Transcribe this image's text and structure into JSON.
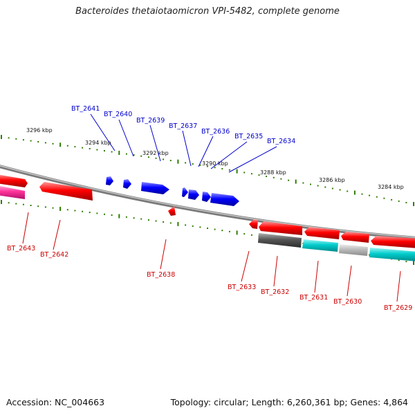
{
  "title": "Bacteroides thetaiotaomicron VPI-5482, complete genome",
  "footer": {
    "accession": "Accession: NC_004663",
    "summary": "Topology: circular; Length: 6,260,361 bp; Genes: 4,864"
  },
  "colors": {
    "label_forward": "#0000cc",
    "label_reverse": "#cc0000",
    "tick": "#2e7d00",
    "backbone": "#7a7a7a",
    "gene_forward": "#0000ff",
    "gene_reverse": "#ff0000",
    "track_gray": "#555555",
    "track_cyan": "#00cccc",
    "track_light": "#bbbbbb",
    "track_pink": "#ff3399"
  },
  "ruler": {
    "outer_labels": [
      "3296 kbp",
      "3294 kbp",
      "3292 kbp",
      "3290 kbp",
      "3288 kbp",
      "3286 kbp",
      "3284 kbp"
    ]
  },
  "genes": {
    "forward": [
      "BT_2641",
      "BT_2640",
      "BT_2639",
      "BT_2637",
      "BT_2636",
      "BT_2635",
      "BT_2634"
    ],
    "reverse": [
      "BT_2643",
      "BT_2642",
      "BT_2638",
      "BT_2633",
      "BT_2632",
      "BT_2631",
      "BT_2630",
      "BT_2629"
    ]
  }
}
